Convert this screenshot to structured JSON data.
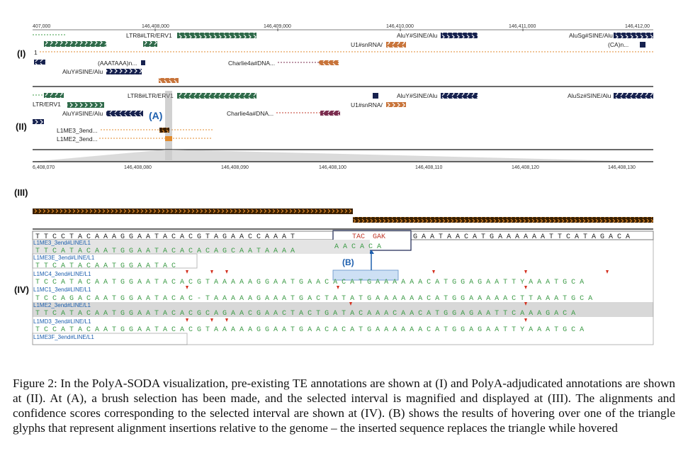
{
  "panel_labels": {
    "p1": "(I)",
    "p2": "(II)",
    "p3": "(III)",
    "p4": "(IV)"
  },
  "callouts": {
    "a": "(A)",
    "b": "(B)"
  },
  "top_axis": {
    "t0": "407,000",
    "t1": "146,408,000",
    "t2": "146,409,000",
    "t3": "146,410,000",
    "t4": "146,411,000",
    "t5": "146,412,00"
  },
  "zoom_axis": {
    "t0": "6,408,070",
    "t1": "146,408,080",
    "t2": "146,408,090",
    "t3": "146,408,100",
    "t4": "146,408,110",
    "t5": "146,408,120",
    "t6": "146,408,130"
  },
  "panel1": {
    "ltr8": "LTR8#LTR/ERV1",
    "aluy_sine": "AluY#SINE/Alu",
    "alusg": "AluSg#SINE/Alu",
    "u1_snrna": "U1#snRNA/",
    "ca_n": "(CA)n...",
    "aaataaa": "(AAATAAA)n...",
    "aluy_sine2": "AluY#SINE/Alu",
    "charlie": "Charlie4a#DNA...",
    "one": "1"
  },
  "panel2": {
    "ltr8": "LTR8#LTR/ERV1",
    "ltr_erv1": "LTR/ERV1",
    "aluy_sine": "AluY#SINE/Alu",
    "alusz": "AluSz#SINE/Alu",
    "u1_snrna": "U1#snRNA/",
    "aluy_sine2": "AluY#SINE/Alu",
    "charlie": "Charlie4a#DNA...",
    "l1me3": "L1ME3_3end...",
    "l1me2": "L1ME2_3end..."
  },
  "panel4": {
    "genome": "T T C C T A C A A A G G A A T A C A C G T A G A A C C A A A T",
    "genome_right": "G A A T A A C A T G A A A A A A T T C A T A G A C A",
    "hover_text": "TAC",
    "hover_text2": "GAK",
    "rows": [
      {
        "label": "L1ME3_3end#LINE/L1",
        "seq": "T T C A T A C A A T G G A A T A C A C A C A G C A A T A A A A",
        "extra": "A A C A C A"
      },
      {
        "label": "L1ME3E_3end#LINE/L1",
        "seq": "T T C A T A C A A T G G A A T A C"
      },
      {
        "label": "L1MC4_3end#LINE/L1",
        "seq": "T C C A T A C A A T G G A A T A C A C G T A A A A A G G A A T G A A C A C A T G A A A A A A C A T G G A G A A T T Y A A A T G C A"
      },
      {
        "label": "L1MC1_3end#LINE/L1",
        "seq": "T C C A G A C A A T G G A A T A C A C - T A A A A A G A A A T G A C T A T A T G A A A A A A C A T G G A A A A A C T T A A A T G C A"
      },
      {
        "label": "L1ME2_3end#LINE/L1",
        "seq": "T T C A T A C A A T G G A A T A C A C G C A G A A C G A A C T A C T G A T A C A A A C A A C A T G G A G A A T T C A A A G A C A"
      },
      {
        "label": "L1MD3_3end#LINE/L1",
        "seq": "T C C A T A C A A T G G A A T A C A C G T A A A A A G G A A T G A A C A C A T G A A A A A A C A T G G A G A A T T Y A A A T G C A"
      },
      {
        "label": "L1ME3F_3end#LINE/L1",
        "seq": ""
      }
    ]
  },
  "caption": "Figure 2: In the PolyA-SODA visualization, pre-existing TE annotations are shown at (I) and PolyA-adjudicated annotations are shown at (II). At (A), a brush selection has been made, and the selected interval is magnified and displayed at (III). The alignments and confidence scores corresponding to the selected interval are shown at (IV). (B) shows the results of hovering over one of the triangle glyphs that represent alignment insertions relative to the genome – the inserted sequence replaces the triangle while hovered",
  "colors": {
    "dark_green": "#2f6b4a",
    "green": "#3d9b47",
    "orange": "#e08a2c",
    "purple": "#7b2d7b",
    "navy": "#17224f",
    "highlight": "#b8d3f0",
    "red": "#d32f1e",
    "blue": "#1d5fae"
  }
}
